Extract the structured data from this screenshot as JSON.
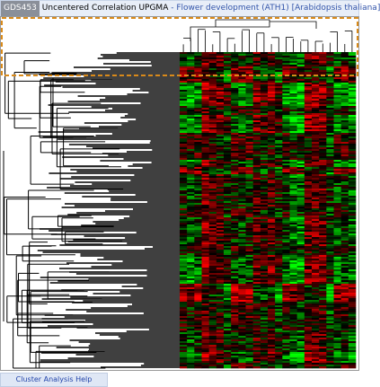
{
  "header": {
    "id": "GDS453",
    "method": "Uncentered Correlation UPGMA",
    "separator": "-",
    "dataset": "Flower development (ATH1) [Arabidopsis thaliana]"
  },
  "footer": {
    "help_link": "Cluster Analysis Help"
  }
}
